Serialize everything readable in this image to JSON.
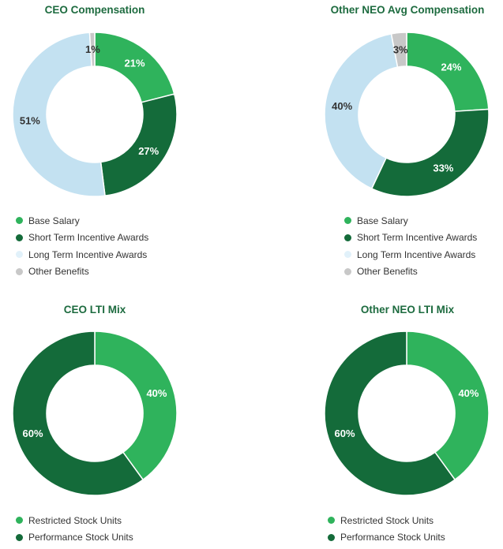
{
  "colors": {
    "base_salary": "#2fb35c",
    "short_term": "#146b3a",
    "long_term": "#c3e1f1",
    "long_term_legend": "#e1f1fa",
    "other": "#c8c8c8",
    "rsu": "#2fb35c",
    "psu": "#146b3a",
    "title": "#1d6b3f"
  },
  "chart_data": [
    {
      "type": "pie",
      "title": "CEO Compensation",
      "categories": [
        "Base Salary",
        "Short Term Incentive Awards",
        "Long Term Incentive Awards",
        "Other Benefits"
      ],
      "values": [
        21,
        27,
        51,
        1
      ],
      "labels": [
        "21%",
        "27%",
        "51%",
        "1%"
      ]
    },
    {
      "type": "pie",
      "title": "Other NEO Avg Compensation",
      "categories": [
        "Base Salary",
        "Short Term Incentive Awards",
        "Long Term Incentive Awards",
        "Other Benefits"
      ],
      "values": [
        24,
        33,
        40,
        3
      ],
      "labels": [
        "24%",
        "33%",
        "40%",
        "3%"
      ]
    },
    {
      "type": "pie",
      "title": "CEO LTI Mix",
      "categories": [
        "Restricted Stock Units",
        "Performance Stock Units"
      ],
      "values": [
        40,
        60
      ],
      "labels": [
        "40%",
        "60%"
      ]
    },
    {
      "type": "pie",
      "title": "Other NEO LTI Mix",
      "categories": [
        "Restricted Stock Units",
        "Performance Stock Units"
      ],
      "values": [
        40,
        60
      ],
      "labels": [
        "40%",
        "60%"
      ]
    }
  ]
}
